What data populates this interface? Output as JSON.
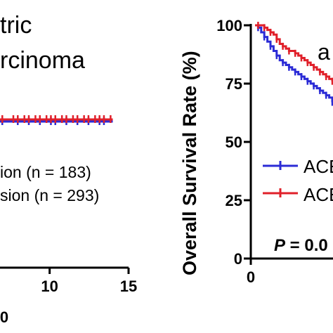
{
  "chart_data": [
    {
      "type": "line",
      "panel": "left",
      "title_lines": [
        "tric",
        "rcinoma"
      ],
      "x_ticks": [
        10,
        15
      ],
      "x_tick_suffix": "0",
      "xlim": [
        0,
        15
      ],
      "series": [
        {
          "name": "ion (n = 183)",
          "color": "#2b2bd6",
          "x": [
            0,
            14.0
          ],
          "y": [
            100,
            100
          ]
        },
        {
          "name": "sion (n = 293)",
          "color": "#e0202a",
          "x": [
            0,
            14.0
          ],
          "y": [
            100,
            100
          ]
        }
      ]
    },
    {
      "type": "line",
      "panel": "right",
      "ylabel": "Overall Survival Rate (%)",
      "y_ticks": [
        0,
        25,
        50,
        75,
        100
      ],
      "ylim": [
        0,
        100
      ],
      "x_ticks": [
        0
      ],
      "legend": [
        "ACE",
        "ACE"
      ],
      "annotation_letter": "a",
      "p_label": "P",
      "p_value_text": " = 0.0",
      "series": [
        {
          "name": "ACE",
          "color": "#2b2bd6",
          "x": [
            0,
            2,
            4,
            6,
            8,
            10,
            12,
            14,
            16,
            18,
            20,
            22,
            24,
            26,
            28,
            30,
            32,
            34,
            36,
            38,
            40,
            42,
            44,
            46,
            48,
            50
          ],
          "y": [
            100,
            99,
            97,
            95,
            93,
            91,
            89,
            87,
            85,
            84,
            83,
            82,
            81,
            80,
            79,
            78,
            77,
            76,
            75,
            74,
            73,
            72,
            71,
            70,
            69,
            67
          ]
        },
        {
          "name": "ACE",
          "color": "#e0202a",
          "x": [
            0,
            2,
            4,
            6,
            8,
            10,
            12,
            14,
            16,
            18,
            20,
            22,
            24,
            26,
            28,
            30,
            32,
            34,
            36,
            38,
            40,
            42,
            44,
            46,
            48,
            50
          ],
          "y": [
            100,
            100,
            100,
            99,
            98,
            97,
            96,
            94,
            92,
            91,
            90,
            89,
            89,
            88,
            87,
            86,
            85,
            84,
            83,
            82,
            81,
            80,
            79,
            78,
            77,
            76
          ]
        }
      ]
    }
  ]
}
